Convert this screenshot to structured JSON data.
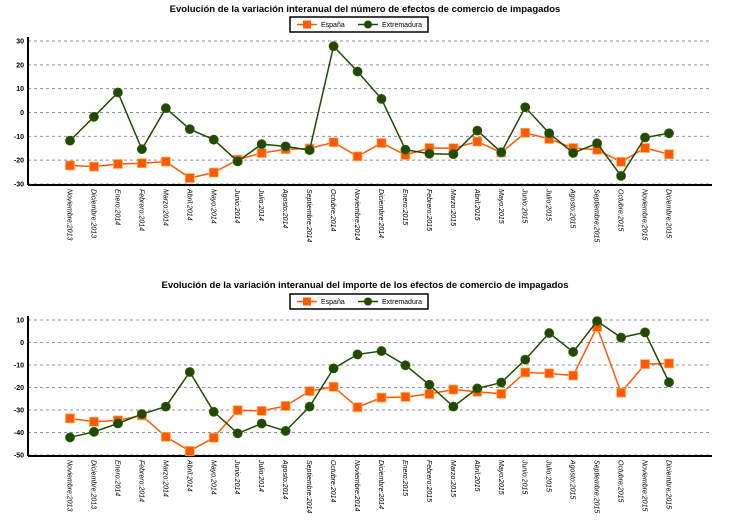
{
  "chart_data": [
    {
      "type": "line",
      "title": "Evolución de la variación interanual del número de  efectos de comercio de impagados",
      "legend_position": "top-center",
      "grid": true,
      "ylim": [
        -30,
        30
      ],
      "yticks": [
        30,
        20,
        10,
        0,
        -10,
        -20,
        -30
      ],
      "categories": [
        "Noviembre:2013",
        "Diciembre:2013",
        "Enero:2014",
        "Febrero:2014",
        "Marzo:2014",
        "Abril:2014",
        "Mayo:2014",
        "Junio:2014",
        "Julio:2014",
        "Agosto:2014",
        "Septiembre:2014",
        "Octubre:2014",
        "Noviembre:2014",
        "Diciembre:2014",
        "Enero:2015",
        "Febrero:2015",
        "Marzo:2015",
        "Abril:2015",
        "Mayo:2015",
        "Junio:2015",
        "Julio:2015",
        "Agosto:2015",
        "Septiembre:2015",
        "Octubre:2015",
        "Noviembre:2015",
        "Diciembre:2015"
      ],
      "series": [
        {
          "name": "España",
          "color": "#ff5a00",
          "marker": "square",
          "values": [
            -22.2,
            -22.7,
            -21.6,
            -21.3,
            -20.6,
            -27.5,
            -25.2,
            -19.8,
            -17.0,
            -15.4,
            -15.1,
            -12.5,
            -18.4,
            -12.8,
            -17.8,
            -14.9,
            -15.0,
            -12.2,
            -16.8,
            -8.5,
            -11.1,
            -14.9,
            -15.6,
            -20.7,
            -14.9,
            -17.5
          ]
        },
        {
          "name": "Extremadura",
          "color": "#1f4a00",
          "marker": "circle",
          "values": [
            -11.8,
            -1.8,
            8.4,
            -15.4,
            1.8,
            -7.0,
            -11.4,
            -20.5,
            -13.3,
            -14.2,
            -15.8,
            27.8,
            17.2,
            5.7,
            -15.6,
            -17.3,
            -17.5,
            -7.6,
            -16.7,
            2.2,
            -8.7,
            -17.0,
            -12.9,
            -26.6,
            -10.5,
            -8.7
          ]
        }
      ]
    },
    {
      "type": "line",
      "title": "Evolución de la variación interanual del importe de los efectos de comercio de impagados",
      "legend_position": "top-center",
      "grid": true,
      "ylim": [
        -50,
        10
      ],
      "yticks": [
        10,
        0,
        -10,
        -20,
        -30,
        -40,
        -50
      ],
      "categories": [
        "Noviembre:2013",
        "Diciembre:2013",
        "Enero:2014",
        "Febrero:2014",
        "Marzo:2014",
        "Abril:2014",
        "Mayo:2014",
        "Junio:2014",
        "Julio:2014",
        "Agosto:2014",
        "Septiembre:2014",
        "Octubre:2014",
        "Noviembre:2014",
        "Diciembre:2014",
        "Enero:2015",
        "Febrero:2015",
        "Marzo:2015",
        "Abril:2015",
        "Mayo:2015",
        "Junio:2015",
        "Julio:2015",
        "Agosto:2015",
        "Septiembre:2015",
        "Octubre:2015",
        "Noviembre:2015",
        "Diciembre:2015"
      ],
      "series": [
        {
          "name": "España",
          "color": "#ff5a00",
          "marker": "square",
          "values": [
            -33.7,
            -35.2,
            -34.6,
            -32.4,
            -41.9,
            -48.2,
            -42.3,
            -30.1,
            -30.4,
            -28.2,
            -21.6,
            -19.7,
            -28.8,
            -24.5,
            -24.2,
            -22.9,
            -20.9,
            -21.9,
            -22.8,
            -13.3,
            -13.7,
            -14.7,
            6.9,
            -22.3,
            -9.6,
            -9.3
          ]
        },
        {
          "name": "Extremadura",
          "color": "#1f4a00",
          "marker": "circle",
          "values": [
            -42.2,
            -39.7,
            -36.0,
            -31.8,
            -28.5,
            -13.1,
            -30.8,
            -40.4,
            -36.0,
            -39.3,
            -28.5,
            -11.5,
            -5.3,
            -3.8,
            -10.1,
            -18.8,
            -28.5,
            -20.4,
            -17.8,
            -7.6,
            4.2,
            -4.2,
            9.5,
            2.2,
            4.5,
            -17.7
          ]
        }
      ]
    }
  ]
}
